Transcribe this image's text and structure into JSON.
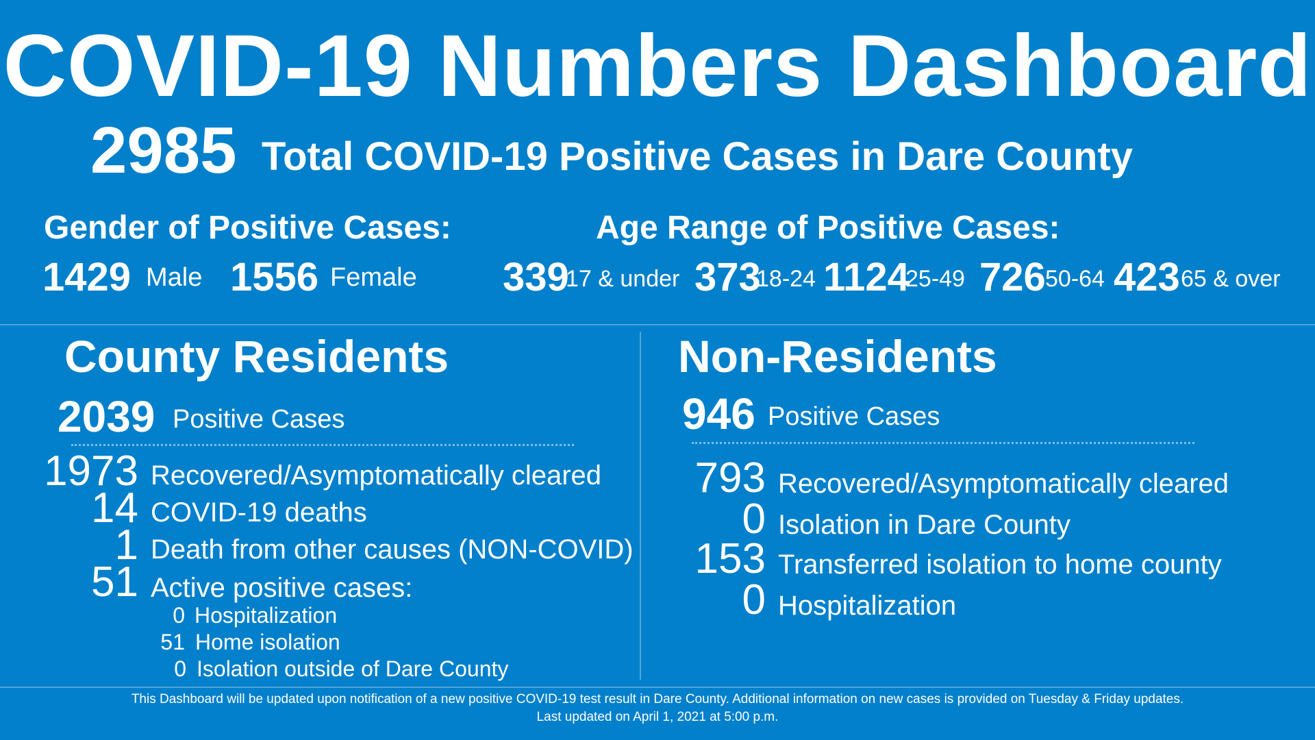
{
  "title": "COVID-19 Numbers Dashboard",
  "total": {
    "value": "2985",
    "label": "Total COVID-19 Positive Cases in Dare County"
  },
  "gender": {
    "heading": "Gender of Positive Cases:",
    "items": [
      {
        "value": "1429",
        "label": "Male"
      },
      {
        "value": "1556",
        "label": "Female"
      }
    ]
  },
  "age": {
    "heading": "Age Range of Positive Cases:",
    "items": [
      {
        "value": "339",
        "label": "17 & under"
      },
      {
        "value": "373",
        "label": "18-24"
      },
      {
        "value": "1124",
        "label": "25-49"
      },
      {
        "value": "726",
        "label": "50-64"
      },
      {
        "value": "423",
        "label": "65 & over"
      }
    ]
  },
  "residents": {
    "heading": "County Residents",
    "positive": {
      "value": "2039",
      "label": "Positive Cases"
    },
    "stats": [
      {
        "value": "1973",
        "label": "Recovered/Asymptomatically cleared"
      },
      {
        "value": "14",
        "label": "COVID-19 deaths"
      },
      {
        "value": "1",
        "label": "Death from other causes (NON-COVID)"
      },
      {
        "value": "51",
        "label": "Active positive cases:"
      }
    ],
    "active_breakdown": [
      {
        "value": "0",
        "label": "Hospitalization"
      },
      {
        "value": "51",
        "label": "Home isolation"
      },
      {
        "value": "0",
        "label": "Isolation outside of Dare County"
      }
    ]
  },
  "non_residents": {
    "heading": "Non-Residents",
    "positive": {
      "value": "946",
      "label": "Positive Cases"
    },
    "stats": [
      {
        "value": "793",
        "label": "Recovered/Asymptomatically cleared"
      },
      {
        "value": "0",
        "label": "Isolation in Dare County"
      },
      {
        "value": "153",
        "label": "Transferred isolation to home county"
      },
      {
        "value": "0",
        "label": "Hospitalization"
      }
    ]
  },
  "footer": {
    "line1": "This Dashboard will be updated upon notification of a new positive COVID-19 test result in Dare County. Additional information on new cases is provided on Tuesday & Friday updates.",
    "line2": "Last updated on April 1, 2021 at 5:00 p.m."
  }
}
